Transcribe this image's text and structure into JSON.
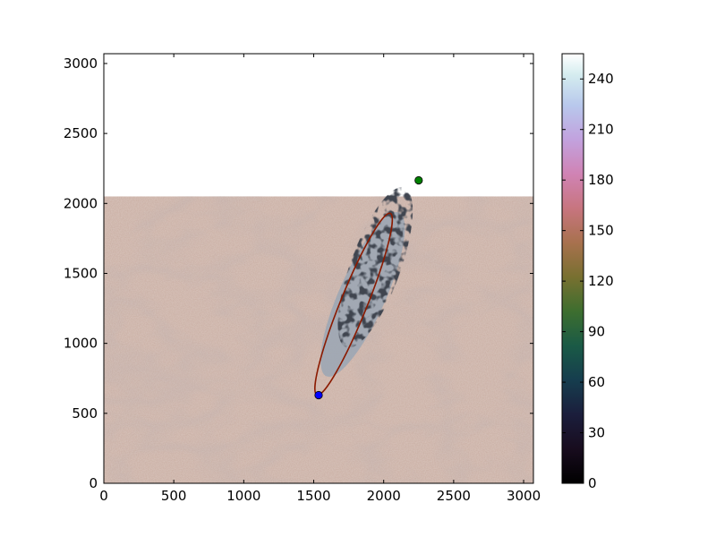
{
  "chart_data": {
    "type": "heatmap",
    "title": "",
    "xlabel": "",
    "ylabel": "",
    "xlim": [
      0,
      3070
    ],
    "ylim": [
      0,
      3070
    ],
    "xticks": [
      "0",
      "500",
      "1000",
      "1500",
      "2000",
      "2500",
      "3000"
    ],
    "yticks": [
      "0",
      "500",
      "1000",
      "1500",
      "2000",
      "2500",
      "3000"
    ],
    "image": {
      "x_extent": [
        0,
        3070
      ],
      "y_extent": [
        0,
        2050
      ],
      "dominant_color": "#c8aca0",
      "dark_streak_center": [
        1850,
        1350
      ]
    },
    "ellipse": {
      "color": "#8b1a00",
      "center": [
        1785,
        1280
      ],
      "semi_major": 700,
      "semi_minor": 95,
      "angle_deg": 68
    },
    "points": [
      {
        "x": 1535,
        "y": 630,
        "color": "#0000ff"
      },
      {
        "x": 2250,
        "y": 2165,
        "color": "#008000"
      }
    ],
    "colorbar": {
      "range": [
        0,
        255
      ],
      "ticks": [
        "0",
        "30",
        "60",
        "90",
        "120",
        "150",
        "180",
        "210",
        "240"
      ],
      "colormap": "cubehelix"
    },
    "grid": false
  }
}
